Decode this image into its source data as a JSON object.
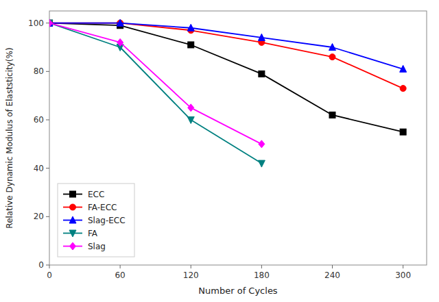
{
  "chart_data": {
    "type": "line",
    "xlabel": "Number of Cycles",
    "ylabel": "Relative Dynamic Modulus of Elaststicity(%)",
    "x": [
      0,
      60,
      120,
      180,
      240,
      300
    ],
    "series": [
      {
        "name": "ECC",
        "color": "#000000",
        "marker": "square",
        "values": [
          100,
          99,
          91,
          79,
          62,
          55
        ]
      },
      {
        "name": "FA-ECC",
        "color": "#ff0000",
        "marker": "circle",
        "values": [
          100,
          100,
          97,
          92,
          86,
          73
        ]
      },
      {
        "name": "Slag-ECC",
        "color": "#0000ff",
        "marker": "triangle-up",
        "values": [
          100,
          100,
          98,
          94,
          90,
          81
        ]
      },
      {
        "name": "FA",
        "color": "#008080",
        "marker": "triangle-down",
        "values": [
          100,
          90,
          60,
          42,
          null,
          null
        ]
      },
      {
        "name": "Slag",
        "color": "#ff00ff",
        "marker": "diamond",
        "values": [
          100,
          92,
          65,
          50,
          null,
          null
        ]
      }
    ],
    "xlim": [
      0,
      320
    ],
    "ylim": [
      0,
      105
    ],
    "xticks": [
      0,
      60,
      120,
      180,
      240,
      300
    ],
    "yticks": [
      0,
      20,
      40,
      60,
      80,
      100
    ],
    "grid": false,
    "legend": "lower left"
  }
}
